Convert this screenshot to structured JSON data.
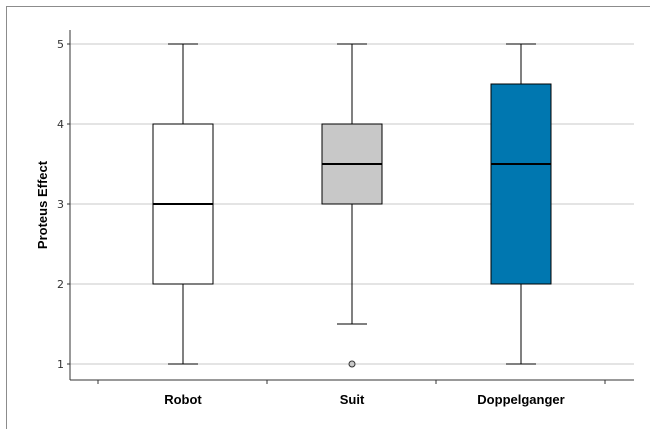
{
  "chart_data": {
    "type": "boxplot",
    "title": "",
    "xlabel": "",
    "ylabel": "Proteus Effect",
    "ylim": [
      0.8,
      5.2
    ],
    "yticks": [
      1,
      2,
      3,
      4,
      5
    ],
    "grid": "horizontal",
    "categories": [
      "Robot",
      "Suit",
      "Doppelganger"
    ],
    "boxes": [
      {
        "category": "Robot",
        "whisker_low": 1,
        "q1": 2,
        "median": 3,
        "q3": 4,
        "whisker_high": 5,
        "outliers": [],
        "fill": "#ffffff"
      },
      {
        "category": "Suit",
        "whisker_low": 1.5,
        "q1": 3,
        "median": 3.5,
        "q3": 4,
        "whisker_high": 5,
        "outliers": [
          1
        ],
        "fill": "#c8c8c8"
      },
      {
        "category": "Doppelganger",
        "whisker_low": 1,
        "q1": 2,
        "median": 3.5,
        "q3": 4.5,
        "whisker_high": 5,
        "outliers": [],
        "fill": "#0077b0"
      }
    ]
  }
}
